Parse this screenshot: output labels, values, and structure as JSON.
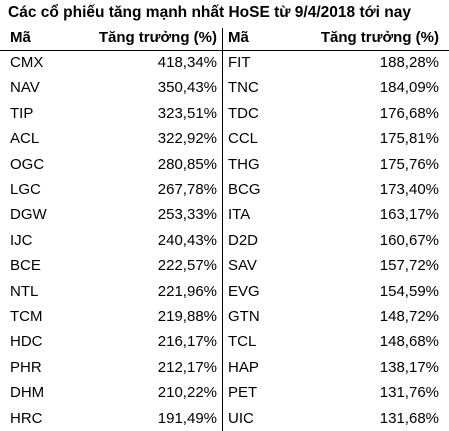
{
  "title": "Các cổ phiếu tăng mạnh nhất HoSE từ 9/4/2018 tới nay",
  "table": {
    "header": [
      "Mã",
      "Tăng trưởng (%)",
      "Mã",
      "Tăng trưởng (%)"
    ],
    "rows": [
      [
        "CMX",
        "418,34%",
        "FIT",
        "188,28%"
      ],
      [
        "NAV",
        "350,43%",
        "TNC",
        "184,09%"
      ],
      [
        "TIP",
        "323,51%",
        "TDC",
        "176,68%"
      ],
      [
        "ACL",
        "322,92%",
        "CCL",
        "175,81%"
      ],
      [
        "OGC",
        "280,85%",
        "THG",
        "175,76%"
      ],
      [
        "LGC",
        "267,78%",
        "BCG",
        "173,40%"
      ],
      [
        "DGW",
        "253,33%",
        "ITA",
        "163,17%"
      ],
      [
        "IJC",
        "240,43%",
        "D2D",
        "160,67%"
      ],
      [
        "BCE",
        "222,57%",
        "SAV",
        "157,72%"
      ],
      [
        "NTL",
        "221,96%",
        "EVG",
        "154,59%"
      ],
      [
        "TCM",
        "219,88%",
        "GTN",
        "148,72%"
      ],
      [
        "HDC",
        "216,17%",
        "TCL",
        "148,68%"
      ],
      [
        "PHR",
        "212,17%",
        "HAP",
        "138,17%"
      ],
      [
        "DHM",
        "210,22%",
        "PET",
        "131,76%"
      ],
      [
        "HRC",
        "191,49%",
        "UIC",
        "131,68%"
      ]
    ]
  }
}
